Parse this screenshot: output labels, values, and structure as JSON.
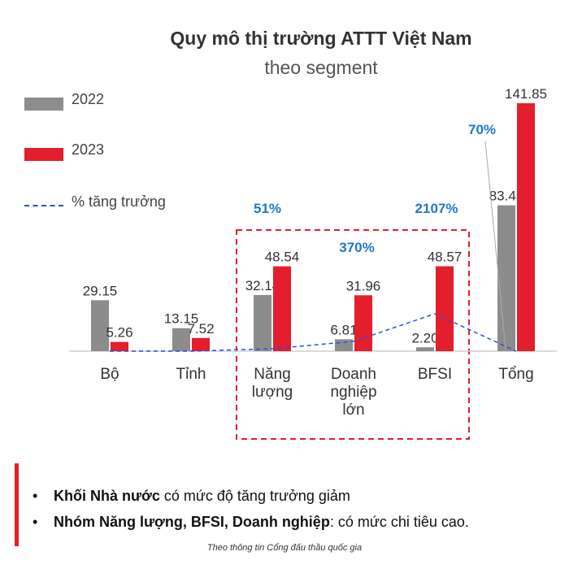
{
  "chart_data": {
    "type": "bar",
    "title": "Quy mô thị trường ATTT Việt Nam",
    "subtitle": "theo segment",
    "categories": [
      [
        "Bộ"
      ],
      [
        "Tỉnh"
      ],
      [
        "Năng",
        "lượng"
      ],
      [
        "Doanh",
        "nghiệp",
        "lớn"
      ],
      [
        "BFSI"
      ],
      [
        "Tổng"
      ]
    ],
    "series": [
      {
        "name": "2022",
        "color": "#8c8c8c",
        "values": [
          29.15,
          13.15,
          32.14,
          6.81,
          2.2,
          83.45
        ],
        "labels": [
          "29.15",
          "13.15",
          "32.14",
          "6.81",
          "2.20",
          "83.45"
        ]
      },
      {
        "name": "2023",
        "color": "#e41e2c",
        "values": [
          5.26,
          7.52,
          48.54,
          31.96,
          48.57,
          141.85
        ],
        "labels": [
          "5.26",
          "7.52",
          "48.54",
          "31.96",
          "48.57",
          "141.85"
        ]
      }
    ],
    "growth": {
      "name": "% tăng trưởng",
      "color": "#2b4ee0",
      "labels": [
        "",
        "",
        "51%",
        "370%",
        "2107%",
        "70%"
      ]
    },
    "ylim": [
      0,
      141.85
    ],
    "legend_position": "top-left",
    "highlight_categories": [
      "Năng lượng",
      "Doanh nghiệp lớn",
      "BFSI"
    ]
  },
  "notes": [
    {
      "bold": "Khối Nhà nước",
      "rest": " có mức độ tăng trưởng giảm"
    },
    {
      "bold": "Nhóm Năng lượng, BFSI, Doanh nghiệp",
      "rest": ": có mức chi tiêu cao."
    }
  ],
  "source": "Theo thông tin Cổng đấu thầu quốc gia",
  "colors": {
    "accent_red": "#e41e2c",
    "bar_gray": "#8c8c8c",
    "growth_blue": "#2b4ee0",
    "growth_label_blue": "#1f78c8"
  }
}
